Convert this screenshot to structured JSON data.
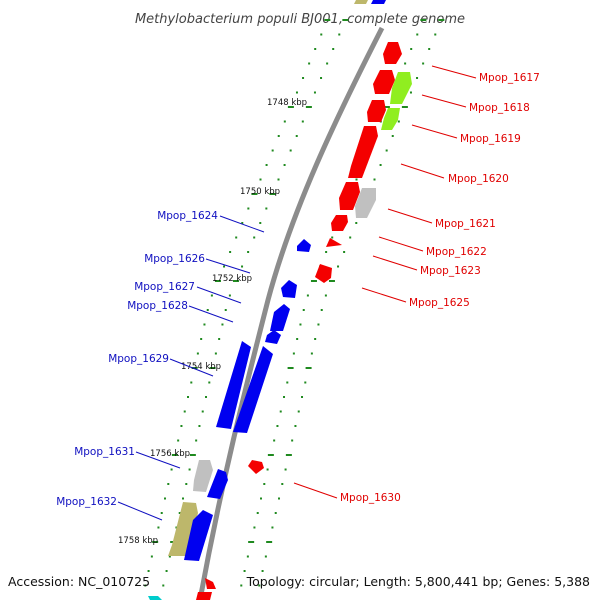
{
  "title": "Methylobacterium populi BJ001, complete genome",
  "footer": {
    "accession": "Accession: NC_010725",
    "stats": "Topology: circular; Length: 5,800,441 bp; Genes: 5,388"
  },
  "colors": {
    "backbone": "#8c8c8c",
    "tick": "#1f8a1f",
    "forward_label": "#e00000",
    "reverse_label": "#1010c0",
    "cds_forward": "#f40000",
    "cds_reverse": "#0000f0",
    "lime": "#90ee20",
    "grey": "#c0c0c0",
    "khaki": "#bdb76b",
    "cyan": "#00cccc"
  },
  "kbp_markers": [
    "1748 kbp",
    "1750 kbp",
    "1752 kbp",
    "1754 kbp",
    "1756 kbp",
    "1758 kbp"
  ],
  "forward_labels": [
    "Mpop_1617",
    "Mpop_1618",
    "Mpop_1619",
    "Mpop_1620",
    "Mpop_1621",
    "Mpop_1622",
    "Mpop_1623",
    "Mpop_1625",
    "Mpop_1630"
  ],
  "reverse_labels": [
    "Mpop_1624",
    "Mpop_1626",
    "Mpop_1627",
    "Mpop_1628",
    "Mpop_1629",
    "Mpop_1631",
    "Mpop_1632"
  ]
}
